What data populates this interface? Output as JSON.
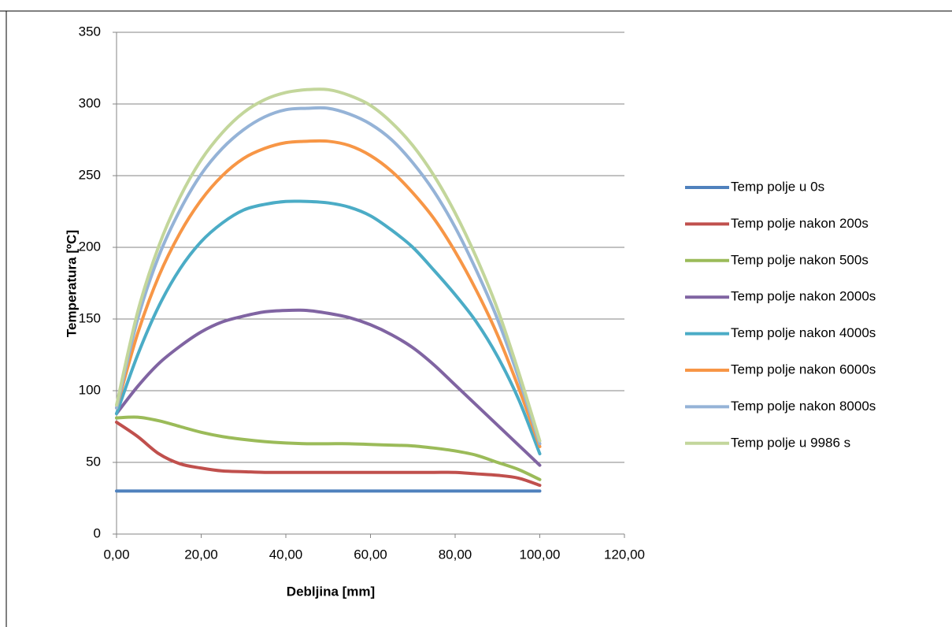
{
  "chart_data": {
    "type": "line",
    "x_label": "Debljina [mm]",
    "y_label": "Temperatura [ºC]",
    "x": [
      0,
      5,
      10,
      15,
      20,
      25,
      30,
      35,
      40,
      45,
      50,
      55,
      60,
      65,
      70,
      75,
      80,
      85,
      90,
      95,
      100
    ],
    "series": [
      {
        "name": "Temp polje u 0s",
        "color": "#4f81bd",
        "values": [
          30,
          30,
          30,
          30,
          30,
          30,
          30,
          30,
          30,
          30,
          30,
          30,
          30,
          30,
          30,
          30,
          30,
          30,
          30,
          30,
          30
        ]
      },
      {
        "name": "Temp polje nakon 200s",
        "color": "#c0504d",
        "values": [
          78,
          68,
          56,
          49,
          46,
          44,
          43.5,
          43,
          43,
          43,
          43,
          43,
          43,
          43,
          43,
          43,
          43,
          42,
          41,
          39,
          34
        ]
      },
      {
        "name": "Temp polje nakon 500s",
        "color": "#9bbb59",
        "values": [
          81,
          81.5,
          79,
          75,
          71,
          68,
          66,
          64.5,
          63.5,
          63,
          63,
          63,
          62.5,
          62,
          61.5,
          60,
          58,
          55,
          50,
          45,
          38
        ]
      },
      {
        "name": "Temp polje nakon 2000s",
        "color": "#8064a2",
        "values": [
          84,
          103,
          119,
          131,
          141,
          148,
          152,
          155,
          156,
          156,
          154,
          151,
          146,
          139,
          130,
          118,
          104,
          90,
          76,
          62,
          48
        ]
      },
      {
        "name": "Temp polje nakon 4000s",
        "color": "#4bacc6",
        "values": [
          84,
          125,
          159,
          185,
          204,
          217,
          226,
          230,
          232,
          232,
          231,
          228,
          222,
          212,
          200,
          184,
          167,
          148,
          124,
          94,
          56
        ]
      },
      {
        "name": "Temp polje nakon 6000s",
        "color": "#f79646",
        "values": [
          88,
          140,
          180,
          210,
          233,
          250,
          262,
          269,
          273,
          274,
          274,
          271,
          264,
          253,
          238,
          220,
          197,
          170,
          139,
          102,
          61
        ]
      },
      {
        "name": "Temp polje nakon 8000s",
        "color": "#95b3d7",
        "values": [
          88,
          150,
          194,
          226,
          251,
          269,
          282,
          291,
          296,
          297,
          297,
          293,
          286,
          275,
          259,
          239,
          214,
          184,
          150,
          109,
          63
        ]
      },
      {
        "name": "Temp polje u 9986 s",
        "color": "#c3d69b",
        "values": [
          90,
          155,
          201,
          235,
          261,
          280,
          294,
          303,
          308,
          310,
          310,
          306,
          299,
          287,
          271,
          250,
          224,
          193,
          157,
          113,
          65
        ]
      }
    ],
    "xlim": [
      0,
      120
    ],
    "xticks": [
      {
        "value": 0,
        "label": "0,00"
      },
      {
        "value": 20,
        "label": "20,00"
      },
      {
        "value": 40,
        "label": "40,00"
      },
      {
        "value": 60,
        "label": "60,00"
      },
      {
        "value": 80,
        "label": "80,00"
      },
      {
        "value": 100,
        "label": "100,00"
      },
      {
        "value": 120,
        "label": "120,00"
      }
    ],
    "ylim": [
      0,
      350
    ],
    "yticks": [
      0,
      50,
      100,
      150,
      200,
      250,
      300,
      350
    ],
    "grid": true,
    "legend": "right"
  }
}
